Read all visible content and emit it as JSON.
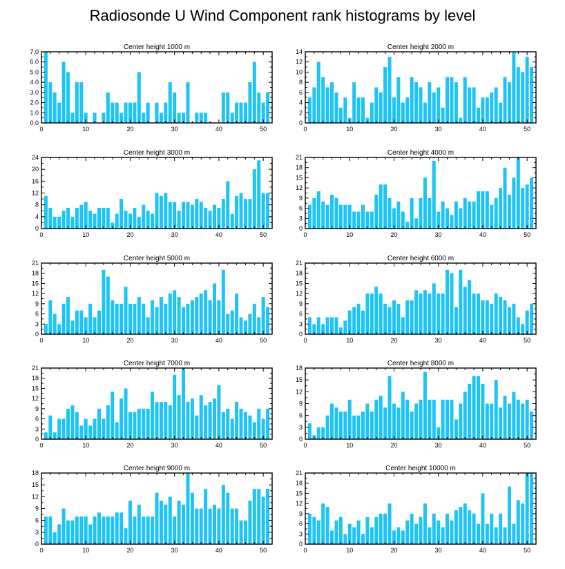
{
  "title": "Radiosonde U Wind Component rank histograms by level",
  "colors": {
    "bar": "#1ec4f5",
    "frame": "#000000",
    "background": "#ffffff"
  },
  "chart_data": [
    {
      "type": "bar",
      "title": "Center height 1000 m",
      "x": [
        1,
        2,
        3,
        4,
        5,
        6,
        7,
        8,
        9,
        10,
        11,
        12,
        13,
        14,
        15,
        16,
        17,
        18,
        19,
        20,
        21,
        22,
        23,
        24,
        25,
        26,
        27,
        28,
        29,
        30,
        31,
        32,
        33,
        34,
        35,
        36,
        37,
        38,
        39,
        40,
        41,
        42,
        43,
        44,
        45,
        46,
        47,
        48,
        49,
        50,
        51
      ],
      "values": [
        7,
        4,
        3,
        2,
        6,
        5,
        1,
        4,
        4,
        1,
        0,
        1,
        0,
        1,
        3,
        2,
        2,
        1,
        2,
        2,
        2,
        5,
        1,
        2,
        0,
        2,
        1,
        2,
        4,
        3,
        1,
        1,
        4,
        0,
        1,
        1,
        1,
        0,
        0,
        0,
        3,
        3,
        1,
        2,
        2,
        2,
        4,
        6,
        3,
        2,
        3
      ],
      "xlim": [
        0,
        52
      ],
      "ylim": [
        0,
        7
      ],
      "xticks": [
        0,
        10,
        20,
        30,
        40,
        50
      ],
      "yticks": [
        0,
        1,
        2,
        3,
        4,
        5,
        6,
        7
      ],
      "ytick_labels": [
        "0.0",
        "1.0",
        "2.0",
        "3.0",
        "4.0",
        "5.0",
        "6.0",
        "7.0"
      ]
    },
    {
      "type": "bar",
      "title": "Center height 2000 m",
      "x": [
        1,
        2,
        3,
        4,
        5,
        6,
        7,
        8,
        9,
        10,
        11,
        12,
        13,
        14,
        15,
        16,
        17,
        18,
        19,
        20,
        21,
        22,
        23,
        24,
        25,
        26,
        27,
        28,
        29,
        30,
        31,
        32,
        33,
        34,
        35,
        36,
        37,
        38,
        39,
        40,
        41,
        42,
        43,
        44,
        45,
        46,
        47,
        48,
        49,
        50,
        51
      ],
      "values": [
        5,
        7,
        12,
        9,
        7,
        8,
        6,
        3,
        5,
        1,
        8,
        5,
        5,
        1,
        4,
        7,
        6,
        11,
        13,
        5,
        9,
        4,
        5,
        9,
        8,
        7,
        4,
        8,
        6,
        7,
        3,
        9,
        9,
        8,
        1,
        9,
        7,
        7,
        3,
        5,
        5,
        6,
        7,
        4,
        9,
        8,
        14,
        11,
        10,
        13,
        11
      ],
      "xlim": [
        0,
        52
      ],
      "ylim": [
        0,
        14
      ],
      "xticks": [
        0,
        10,
        20,
        30,
        40,
        50
      ],
      "yticks": [
        0,
        2,
        4,
        6,
        8,
        10,
        12,
        14
      ],
      "ytick_labels": [
        "0",
        "2",
        "4",
        "6",
        "8",
        "10",
        "12",
        "14"
      ]
    },
    {
      "type": "bar",
      "title": "Center height 3000 m",
      "x": [
        1,
        2,
        3,
        4,
        5,
        6,
        7,
        8,
        9,
        10,
        11,
        12,
        13,
        14,
        15,
        16,
        17,
        18,
        19,
        20,
        21,
        22,
        23,
        24,
        25,
        26,
        27,
        28,
        29,
        30,
        31,
        32,
        33,
        34,
        35,
        36,
        37,
        38,
        39,
        40,
        41,
        42,
        43,
        44,
        45,
        46,
        47,
        48,
        49,
        50,
        51
      ],
      "values": [
        11,
        7,
        4,
        4,
        6,
        7,
        4,
        7,
        8,
        9,
        6,
        5,
        7,
        7,
        7,
        2,
        5,
        10,
        6,
        5,
        7,
        4,
        8,
        6,
        5,
        12,
        11,
        12,
        9,
        9,
        6,
        9,
        9,
        8,
        10,
        9,
        7,
        6,
        8,
        7,
        10,
        16,
        5,
        11,
        12,
        10,
        10,
        20,
        23,
        12,
        12
      ],
      "xlim": [
        0,
        52
      ],
      "ylim": [
        0,
        24
      ],
      "xticks": [
        0,
        10,
        20,
        30,
        40,
        50
      ],
      "yticks": [
        0,
        4,
        8,
        12,
        16,
        20,
        24
      ],
      "ytick_labels": [
        "0",
        "4",
        "8",
        "12",
        "16",
        "20",
        "24"
      ]
    },
    {
      "type": "bar",
      "title": "Center height 4000 m",
      "x": [
        1,
        2,
        3,
        4,
        5,
        6,
        7,
        8,
        9,
        10,
        11,
        12,
        13,
        14,
        15,
        16,
        17,
        18,
        19,
        20,
        21,
        22,
        23,
        24,
        25,
        26,
        27,
        28,
        29,
        30,
        31,
        32,
        33,
        34,
        35,
        36,
        37,
        38,
        39,
        40,
        41,
        42,
        43,
        44,
        45,
        46,
        47,
        48,
        49,
        50,
        51
      ],
      "values": [
        7,
        9,
        11,
        8,
        7,
        10,
        9,
        7,
        7,
        7,
        5,
        5,
        7,
        5,
        5,
        10,
        13,
        13,
        9,
        6,
        8,
        5,
        2,
        9,
        3,
        9,
        15,
        9,
        20,
        5,
        8,
        6,
        4,
        8,
        6,
        9,
        8,
        8,
        11,
        11,
        11,
        7,
        9,
        12,
        18,
        10,
        15,
        21,
        12,
        13,
        15
      ],
      "xlim": [
        0,
        52
      ],
      "ylim": [
        0,
        21
      ],
      "xticks": [
        0,
        10,
        20,
        30,
        40,
        50
      ],
      "yticks": [
        0,
        3,
        6,
        9,
        12,
        15,
        18,
        21
      ],
      "ytick_labels": [
        "0",
        "3",
        "6",
        "9",
        "12",
        "15",
        "18",
        "21"
      ]
    },
    {
      "type": "bar",
      "title": "Center height 5000 m",
      "x": [
        1,
        2,
        3,
        4,
        5,
        6,
        7,
        8,
        9,
        10,
        11,
        12,
        13,
        14,
        15,
        16,
        17,
        18,
        19,
        20,
        21,
        22,
        23,
        24,
        25,
        26,
        27,
        28,
        29,
        30,
        31,
        32,
        33,
        34,
        35,
        36,
        37,
        38,
        39,
        40,
        41,
        42,
        43,
        44,
        45,
        46,
        47,
        48,
        49,
        50,
        51
      ],
      "values": [
        3,
        10,
        6,
        3,
        9,
        11,
        4,
        7,
        7,
        5,
        9,
        5,
        7,
        19,
        17,
        10,
        9,
        9,
        14,
        9,
        9,
        11,
        9,
        5,
        10,
        8,
        11,
        9,
        12,
        13,
        11,
        8,
        9,
        10,
        11,
        12,
        13,
        10,
        15,
        10,
        19,
        6,
        7,
        12,
        5,
        4,
        6,
        9,
        5,
        11,
        8
      ],
      "xlim": [
        0,
        52
      ],
      "ylim": [
        0,
        21
      ],
      "xticks": [
        0,
        10,
        20,
        30,
        40,
        50
      ],
      "yticks": [
        0,
        3,
        6,
        9,
        12,
        15,
        18,
        21
      ],
      "ytick_labels": [
        "0",
        "3",
        "6",
        "9",
        "12",
        "15",
        "18",
        "21"
      ]
    },
    {
      "type": "bar",
      "title": "Center height 6000 m",
      "x": [
        1,
        2,
        3,
        4,
        5,
        6,
        7,
        8,
        9,
        10,
        11,
        12,
        13,
        14,
        15,
        16,
        17,
        18,
        19,
        20,
        21,
        22,
        23,
        24,
        25,
        26,
        27,
        28,
        29,
        30,
        31,
        32,
        33,
        34,
        35,
        36,
        37,
        38,
        39,
        40,
        41,
        42,
        43,
        44,
        45,
        46,
        47,
        48,
        49,
        50,
        51
      ],
      "values": [
        5,
        3,
        5,
        3,
        5,
        5,
        5,
        2,
        4,
        7,
        8,
        9,
        7,
        12,
        12,
        14,
        12,
        9,
        8,
        10,
        9,
        5,
        10,
        10,
        13,
        12,
        13,
        12,
        15,
        12,
        12,
        19,
        18,
        8,
        19,
        14,
        16,
        12,
        12,
        10,
        10,
        9,
        12,
        11,
        10,
        8,
        9,
        5,
        3,
        7,
        9
      ],
      "xlim": [
        0,
        52
      ],
      "ylim": [
        0,
        21
      ],
      "xticks": [
        0,
        10,
        20,
        30,
        40,
        50
      ],
      "yticks": [
        0,
        3,
        6,
        9,
        12,
        15,
        18,
        21
      ],
      "ytick_labels": [
        "0",
        "3",
        "6",
        "9",
        "12",
        "15",
        "18",
        "21"
      ]
    },
    {
      "type": "bar",
      "title": "Center height 7000 m",
      "x": [
        1,
        2,
        3,
        4,
        5,
        6,
        7,
        8,
        9,
        10,
        11,
        12,
        13,
        14,
        15,
        16,
        17,
        18,
        19,
        20,
        21,
        22,
        23,
        24,
        25,
        26,
        27,
        28,
        29,
        30,
        31,
        32,
        33,
        34,
        35,
        36,
        37,
        38,
        39,
        40,
        41,
        42,
        43,
        44,
        45,
        46,
        47,
        48,
        49,
        50,
        51
      ],
      "values": [
        2,
        7,
        2,
        6,
        6,
        9,
        10,
        8,
        4,
        6,
        4,
        6,
        9,
        6,
        10,
        14,
        5,
        12,
        15,
        8,
        8,
        9,
        9,
        9,
        14,
        11,
        11,
        11,
        10,
        19,
        13,
        21,
        11,
        12,
        7,
        13,
        10,
        11,
        12,
        16,
        8,
        9,
        6,
        11,
        9,
        8,
        7,
        5,
        9,
        6,
        9
      ],
      "xlim": [
        0,
        52
      ],
      "ylim": [
        0,
        21
      ],
      "xticks": [
        0,
        10,
        20,
        30,
        40,
        50
      ],
      "yticks": [
        0,
        3,
        6,
        9,
        12,
        15,
        18,
        21
      ],
      "ytick_labels": [
        "0",
        "3",
        "6",
        "9",
        "12",
        "15",
        "18",
        "21"
      ]
    },
    {
      "type": "bar",
      "title": "Center height 8000 m",
      "x": [
        1,
        2,
        3,
        4,
        5,
        6,
        7,
        8,
        9,
        10,
        11,
        12,
        13,
        14,
        15,
        16,
        17,
        18,
        19,
        20,
        21,
        22,
        23,
        24,
        25,
        26,
        27,
        28,
        29,
        30,
        31,
        32,
        33,
        34,
        35,
        36,
        37,
        38,
        39,
        40,
        41,
        42,
        43,
        44,
        45,
        46,
        47,
        48,
        49,
        50,
        51
      ],
      "values": [
        4,
        1,
        3,
        3,
        6,
        9,
        8,
        7,
        7,
        10,
        6,
        6,
        7,
        9,
        7,
        10,
        11,
        8,
        16,
        9,
        8,
        12,
        10,
        7,
        9,
        10,
        17,
        10,
        10,
        3,
        10,
        10,
        10,
        5,
        9,
        12,
        14,
        16,
        16,
        14,
        9,
        9,
        15,
        8,
        11,
        9,
        12,
        10,
        9,
        10,
        7
      ],
      "xlim": [
        0,
        52
      ],
      "ylim": [
        0,
        18
      ],
      "xticks": [
        0,
        10,
        20,
        30,
        40,
        50
      ],
      "yticks": [
        0,
        3,
        6,
        9,
        12,
        15,
        18
      ],
      "ytick_labels": [
        "0",
        "3",
        "6",
        "9",
        "12",
        "15",
        "18"
      ]
    },
    {
      "type": "bar",
      "title": "Center height 9000 m",
      "x": [
        1,
        2,
        3,
        4,
        5,
        6,
        7,
        8,
        9,
        10,
        11,
        12,
        13,
        14,
        15,
        16,
        17,
        18,
        19,
        20,
        21,
        22,
        23,
        24,
        25,
        26,
        27,
        28,
        29,
        30,
        31,
        32,
        33,
        34,
        35,
        36,
        37,
        38,
        39,
        40,
        41,
        42,
        43,
        44,
        45,
        46,
        47,
        48,
        49,
        50,
        51
      ],
      "values": [
        7,
        7,
        3,
        5,
        9,
        6,
        6,
        7,
        7,
        7,
        5,
        7,
        8,
        7,
        7,
        7,
        8,
        8,
        4,
        11,
        7,
        10,
        7,
        7,
        7,
        13,
        11,
        10,
        12,
        7,
        11,
        10,
        18,
        13,
        9,
        9,
        14,
        9,
        10,
        9,
        15,
        13,
        9,
        9,
        6,
        6,
        11,
        14,
        14,
        12,
        14
      ],
      "xlim": [
        0,
        52
      ],
      "ylim": [
        0,
        18
      ],
      "xticks": [
        0,
        10,
        20,
        30,
        40,
        50
      ],
      "yticks": [
        0,
        3,
        6,
        9,
        12,
        15,
        18
      ],
      "ytick_labels": [
        "0",
        "3",
        "6",
        "9",
        "12",
        "15",
        "18"
      ]
    },
    {
      "type": "bar",
      "title": "Center height 10000 m",
      "x": [
        1,
        2,
        3,
        4,
        5,
        6,
        7,
        8,
        9,
        10,
        11,
        12,
        13,
        14,
        15,
        16,
        17,
        18,
        19,
        20,
        21,
        22,
        23,
        24,
        25,
        26,
        27,
        28,
        29,
        30,
        31,
        32,
        33,
        34,
        35,
        36,
        37,
        38,
        39,
        40,
        41,
        42,
        43,
        44,
        45,
        46,
        47,
        48,
        49,
        50,
        51
      ],
      "values": [
        9,
        8,
        7,
        12,
        11,
        4,
        7,
        8,
        3,
        6,
        5,
        7,
        3,
        8,
        5,
        8,
        9,
        9,
        12,
        4,
        5,
        4,
        7,
        9,
        6,
        8,
        12,
        5,
        9,
        7,
        5,
        9,
        7,
        10,
        11,
        12,
        10,
        9,
        6,
        15,
        6,
        9,
        5,
        9,
        5,
        17,
        6,
        13,
        12,
        21,
        21
      ],
      "xlim": [
        0,
        52
      ],
      "ylim": [
        0,
        21
      ],
      "xticks": [
        0,
        10,
        20,
        30,
        40,
        50
      ],
      "yticks": [
        0,
        3,
        6,
        9,
        12,
        15,
        18,
        21
      ],
      "ytick_labels": [
        "0",
        "3",
        "6",
        "9",
        "12",
        "15",
        "18",
        "21"
      ]
    }
  ]
}
